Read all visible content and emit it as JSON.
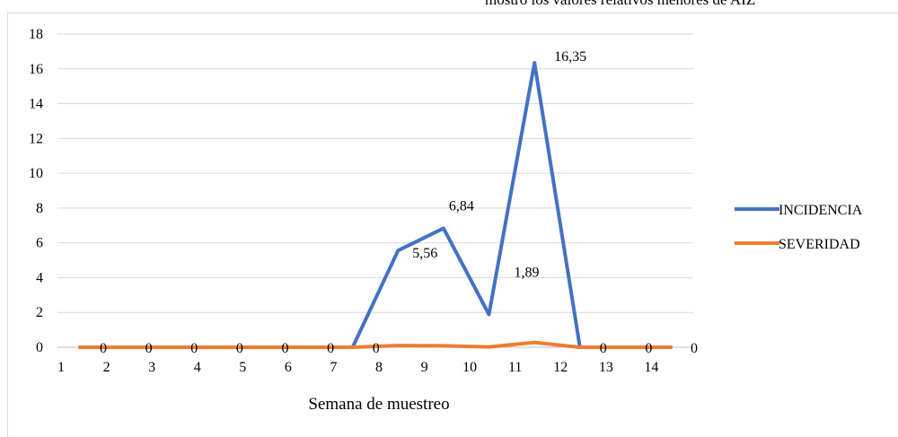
{
  "caption": "mostró los valores relativos menores de AIZ",
  "chart_data": {
    "type": "line",
    "xlabel": "Semana de muestreo",
    "ylabel": "",
    "categories": [
      "1",
      "2",
      "3",
      "4",
      "5",
      "6",
      "7",
      "8",
      "9",
      "10",
      "11",
      "12",
      "13",
      "14"
    ],
    "ylim": [
      0,
      18
    ],
    "yticks": [
      "0",
      "2",
      "4",
      "6",
      "8",
      "10",
      "12",
      "14",
      "16",
      "18"
    ],
    "grid": true,
    "legend": "right",
    "series": [
      {
        "name": "INCIDENCIA",
        "color": "#4472C4",
        "values": [
          0,
          0,
          0,
          0,
          0,
          0,
          0,
          5.56,
          6.84,
          1.89,
          16.35,
          0,
          0,
          0
        ]
      },
      {
        "name": "SEVERIDAD",
        "color": "#ED7D31",
        "values": [
          0,
          0,
          0,
          0,
          0,
          0,
          0,
          0.1,
          0.08,
          0.02,
          0.28,
          0,
          0,
          0
        ]
      }
    ],
    "data_labels": [
      "0",
      "0",
      "0",
      "0",
      "0",
      "0",
      "0",
      "5,56",
      "6,84",
      "1,89",
      "16,35",
      "0",
      "0",
      "0"
    ]
  }
}
